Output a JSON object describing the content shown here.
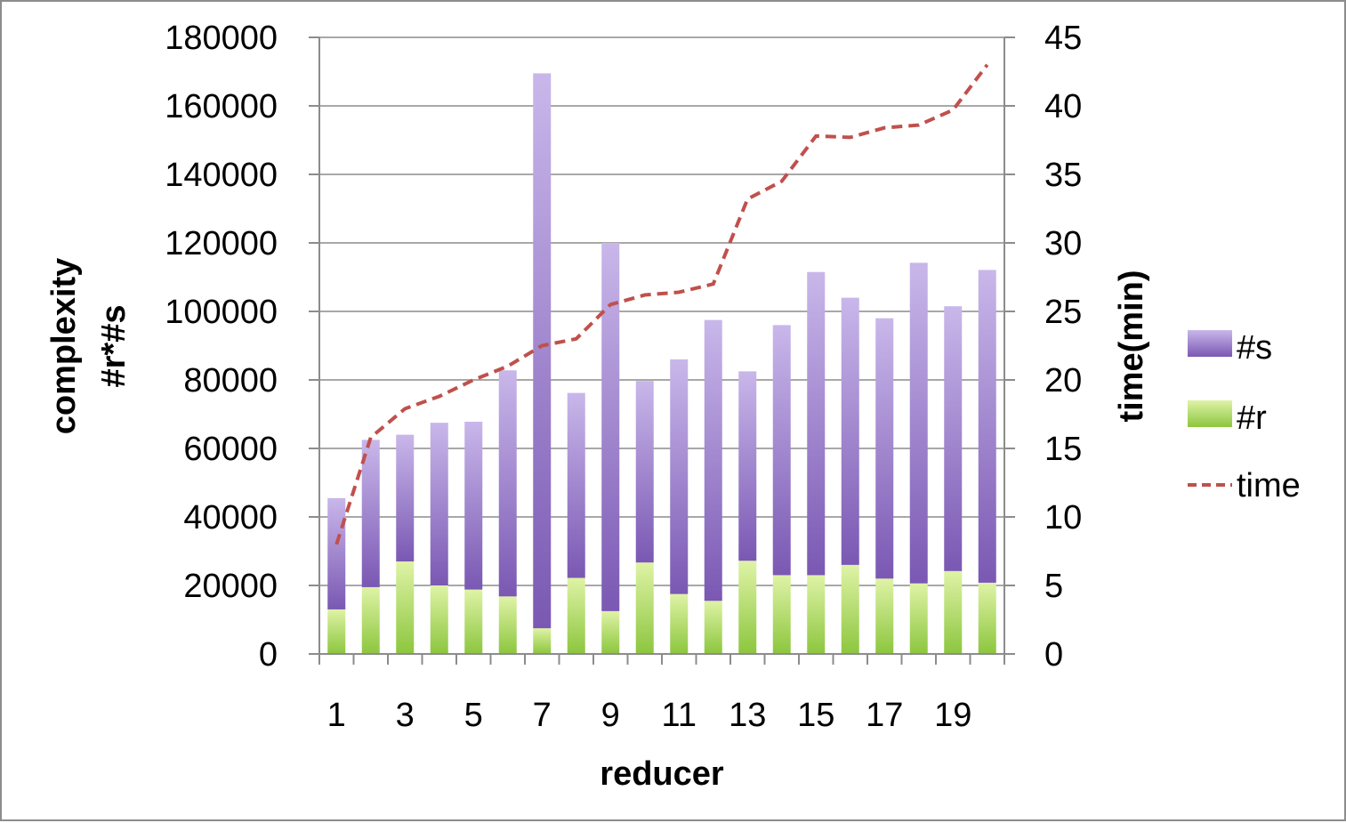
{
  "chart_data": {
    "type": "bar",
    "stacked": true,
    "categories": [
      "1",
      "2",
      "3",
      "4",
      "5",
      "6",
      "7",
      "8",
      "9",
      "10",
      "11",
      "12",
      "13",
      "14",
      "15",
      "16",
      "17",
      "18",
      "19",
      "20"
    ],
    "x_tick_labels": [
      "1",
      "3",
      "5",
      "7",
      "9",
      "11",
      "13",
      "15",
      "17",
      "19"
    ],
    "series": [
      {
        "name": "#r",
        "axis": "left",
        "color": "#92d050",
        "values": [
          13000,
          19500,
          27000,
          20000,
          18800,
          16800,
          7500,
          22200,
          12500,
          26700,
          17500,
          15500,
          27200,
          23000,
          23000,
          26000,
          22000,
          20600,
          24200,
          20800
        ]
      },
      {
        "name": "#s",
        "axis": "left",
        "color": "#8064a2",
        "values": [
          32500,
          43000,
          37000,
          47500,
          49000,
          66000,
          162000,
          54000,
          107500,
          53000,
          68500,
          82000,
          55300,
          73000,
          88500,
          78000,
          76000,
          93600,
          77300,
          91300
        ]
      },
      {
        "name": "time",
        "axis": "right",
        "type": "line",
        "style": "dashed",
        "color": "#c0504d",
        "values": [
          8,
          15.8,
          17.9,
          18.8,
          20,
          21,
          22.5,
          23,
          25.5,
          26.2,
          26.4,
          27,
          33.2,
          34.5,
          37.8,
          37.7,
          38.4,
          38.6,
          39.7,
          43
        ]
      }
    ],
    "ylabel_lines": [
      "complexity",
      "#r*#s"
    ],
    "y2label": "time(min)",
    "xlabel": "reducer",
    "ylim": [
      0,
      180000
    ],
    "y_ticks": [
      "0",
      "20000",
      "40000",
      "60000",
      "80000",
      "100000",
      "120000",
      "140000",
      "160000",
      "180000"
    ],
    "y2lim": [
      0,
      45
    ],
    "y2_ticks": [
      "0",
      "5",
      "10",
      "15",
      "20",
      "25",
      "30",
      "35",
      "40",
      "45"
    ],
    "grid": true,
    "legend_position": "right",
    "legend": [
      "#s",
      "#r",
      "time"
    ]
  }
}
